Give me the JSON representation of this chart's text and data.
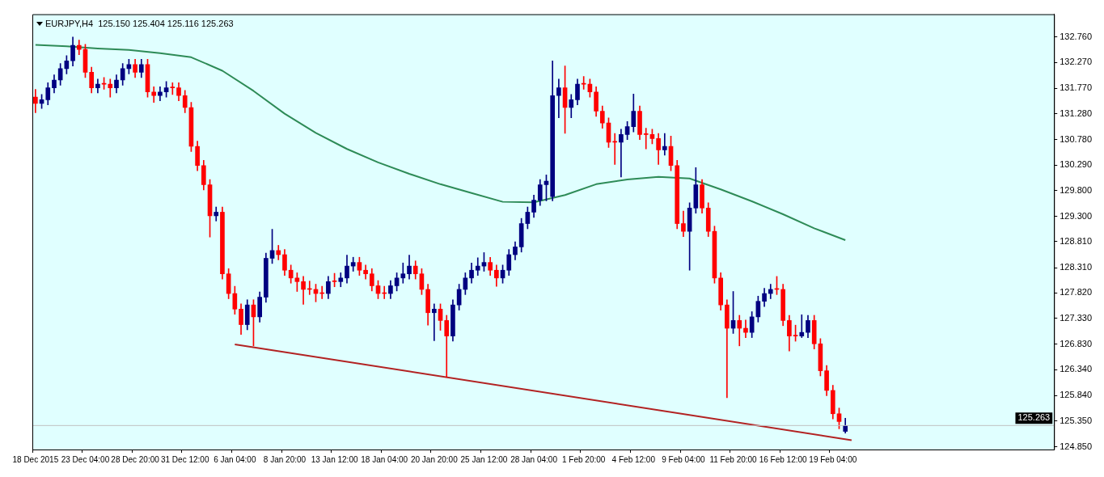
{
  "chart_data": {
    "type": "candlestick",
    "title": "EURJPY,H4  125.150 125.404 125.116 125.263",
    "categories": [
      "18 Dec 2015",
      null,
      null,
      null,
      null,
      null,
      null,
      null,
      "23 Dec 04:00",
      null,
      null,
      null,
      null,
      null,
      null,
      null,
      "28 Dec 20:00",
      null,
      null,
      null,
      null,
      null,
      null,
      null,
      "31 Dec 12:00",
      null,
      null,
      null,
      null,
      null,
      null,
      null,
      "6 Jan 04:00",
      null,
      null,
      null,
      null,
      null,
      null,
      null,
      "8 Jan 20:00",
      null,
      null,
      null,
      null,
      null,
      null,
      null,
      "13 Jan 12:00",
      null,
      null,
      null,
      null,
      null,
      null,
      null,
      "18 Jan 04:00",
      null,
      null,
      null,
      null,
      null,
      null,
      null,
      "20 Jan 20:00",
      null,
      null,
      null,
      null,
      null,
      null,
      null,
      "25 Jan 12:00",
      null,
      null,
      null,
      null,
      null,
      null,
      null,
      "28 Jan 04:00",
      null,
      null,
      null,
      null,
      null,
      null,
      null,
      "1 Feb 20:00",
      null,
      null,
      null,
      null,
      null,
      null,
      null,
      "4 Feb 12:00",
      null,
      null,
      null,
      null,
      null,
      null,
      null,
      "9 Feb 04:00",
      null,
      null,
      null,
      null,
      null,
      null,
      null,
      "11 Feb 20:00",
      null,
      null,
      null,
      null,
      null,
      null,
      null,
      "16 Feb 12:00",
      null,
      null,
      null,
      null,
      null,
      null,
      null,
      "19 Feb 04:00",
      null,
      null,
      null,
      null,
      null,
      null,
      null,
      null,
      null,
      null,
      null,
      null,
      null,
      null,
      null,
      null,
      null,
      null,
      null,
      null,
      null,
      null,
      null,
      null,
      null,
      null,
      null,
      null,
      null,
      null,
      null,
      null,
      null,
      null,
      null
    ],
    "ohlc": [
      [
        131.6,
        131.75,
        131.3,
        131.48
      ],
      [
        131.48,
        131.65,
        131.38,
        131.55
      ],
      [
        131.55,
        131.88,
        131.45,
        131.78
      ],
      [
        131.78,
        132.03,
        131.68,
        131.93
      ],
      [
        131.93,
        132.25,
        131.83,
        132.15
      ],
      [
        132.15,
        132.4,
        132.05,
        132.3
      ],
      [
        132.3,
        132.76,
        132.2,
        132.6
      ],
      [
        132.6,
        132.7,
        132.42,
        132.52
      ],
      [
        132.52,
        132.62,
        131.98,
        132.08
      ],
      [
        132.08,
        132.18,
        131.68,
        131.78
      ],
      [
        131.78,
        131.95,
        131.68,
        131.85
      ],
      [
        131.85,
        131.98,
        131.75,
        131.85
      ],
      [
        131.85,
        131.95,
        131.6,
        131.78
      ],
      [
        131.78,
        132.03,
        131.68,
        131.93
      ],
      [
        131.93,
        132.25,
        131.83,
        132.15
      ],
      [
        132.15,
        132.33,
        132.05,
        132.23
      ],
      [
        132.23,
        132.33,
        131.98,
        132.08
      ],
      [
        132.08,
        132.33,
        131.98,
        132.23
      ],
      [
        132.23,
        132.33,
        131.6,
        131.7
      ],
      [
        131.7,
        131.8,
        131.5,
        131.63
      ],
      [
        131.63,
        131.8,
        131.53,
        131.7
      ],
      [
        131.7,
        131.9,
        131.6,
        131.78
      ],
      [
        131.78,
        131.88,
        131.65,
        131.78
      ],
      [
        131.78,
        131.88,
        131.53,
        131.63
      ],
      [
        131.63,
        131.73,
        131.3,
        131.4
      ],
      [
        131.4,
        131.5,
        130.55,
        130.65
      ],
      [
        130.65,
        130.75,
        130.18,
        130.28
      ],
      [
        130.28,
        130.38,
        129.81,
        129.91
      ],
      [
        129.91,
        130.01,
        128.9,
        129.31
      ],
      [
        129.31,
        129.48,
        129.21,
        129.38
      ],
      [
        129.38,
        129.48,
        128.09,
        128.19
      ],
      [
        128.19,
        128.29,
        127.71,
        127.81
      ],
      [
        127.81,
        127.95,
        127.41,
        127.51
      ],
      [
        127.51,
        127.61,
        127.02,
        127.21
      ],
      [
        127.21,
        127.69,
        127.11,
        127.59
      ],
      [
        127.59,
        127.69,
        126.8,
        127.36
      ],
      [
        127.36,
        127.84,
        127.26,
        127.74
      ],
      [
        127.74,
        128.59,
        127.64,
        128.49
      ],
      [
        128.49,
        129.05,
        128.39,
        128.64
      ],
      [
        128.64,
        128.74,
        128.46,
        128.56
      ],
      [
        128.56,
        128.66,
        128.16,
        128.26
      ],
      [
        128.26,
        128.36,
        128.01,
        128.11
      ],
      [
        128.11,
        128.21,
        127.85,
        128.04
      ],
      [
        128.04,
        128.14,
        127.6,
        127.89
      ],
      [
        127.89,
        128.05,
        127.79,
        127.89
      ],
      [
        127.89,
        127.99,
        127.65,
        127.81
      ],
      [
        127.81,
        127.95,
        127.71,
        127.81
      ],
      [
        127.81,
        128.14,
        127.71,
        128.04
      ],
      [
        128.04,
        128.2,
        127.94,
        128.04
      ],
      [
        128.04,
        128.21,
        127.94,
        128.11
      ],
      [
        128.11,
        128.55,
        128.01,
        128.34
      ],
      [
        128.34,
        128.51,
        128.24,
        128.41
      ],
      [
        128.41,
        128.51,
        128.16,
        128.26
      ],
      [
        128.26,
        128.36,
        128.09,
        128.19
      ],
      [
        128.19,
        128.29,
        127.86,
        127.96
      ],
      [
        127.96,
        128.06,
        127.71,
        127.81
      ],
      [
        127.81,
        127.95,
        127.71,
        127.81
      ],
      [
        127.81,
        128.06,
        127.71,
        127.96
      ],
      [
        127.96,
        128.21,
        127.86,
        128.11
      ],
      [
        128.11,
        128.4,
        128.01,
        128.19
      ],
      [
        128.19,
        128.55,
        128.09,
        128.34
      ],
      [
        128.34,
        128.44,
        128.09,
        128.19
      ],
      [
        128.19,
        128.29,
        127.79,
        127.89
      ],
      [
        127.89,
        127.99,
        127.2,
        127.44
      ],
      [
        127.44,
        127.61,
        126.9,
        127.51
      ],
      [
        127.51,
        127.61,
        127.1,
        127.29
      ],
      [
        127.29,
        127.39,
        126.2,
        126.99
      ],
      [
        126.99,
        127.69,
        126.89,
        127.59
      ],
      [
        127.59,
        127.99,
        127.49,
        127.89
      ],
      [
        127.89,
        128.21,
        127.79,
        128.11
      ],
      [
        128.11,
        128.4,
        128.01,
        128.26
      ],
      [
        128.26,
        128.5,
        128.16,
        128.34
      ],
      [
        128.34,
        128.6,
        128.24,
        128.41
      ],
      [
        128.41,
        128.51,
        128.16,
        128.26
      ],
      [
        128.26,
        128.36,
        127.95,
        128.11
      ],
      [
        128.11,
        128.36,
        128.01,
        128.26
      ],
      [
        128.26,
        128.66,
        128.16,
        128.56
      ],
      [
        128.56,
        128.81,
        128.46,
        128.71
      ],
      [
        128.71,
        129.26,
        128.61,
        129.16
      ],
      [
        129.16,
        129.48,
        129.06,
        129.38
      ],
      [
        129.38,
        129.71,
        129.28,
        129.61
      ],
      [
        129.61,
        130.01,
        129.51,
        129.91
      ],
      [
        129.91,
        130.1,
        129.6,
        129.98
      ],
      [
        129.68,
        132.3,
        129.6,
        131.63
      ],
      [
        131.63,
        131.95,
        131.2,
        131.78
      ],
      [
        131.78,
        132.2,
        130.9,
        131.4
      ],
      [
        131.4,
        131.65,
        131.2,
        131.55
      ],
      [
        131.55,
        131.95,
        131.45,
        131.85
      ],
      [
        131.85,
        132.0,
        131.75,
        131.85
      ],
      [
        131.85,
        131.95,
        131.6,
        131.7
      ],
      [
        131.7,
        131.8,
        131.23,
        131.33
      ],
      [
        131.33,
        131.43,
        131.0,
        131.1
      ],
      [
        131.1,
        131.2,
        130.63,
        130.73
      ],
      [
        130.73,
        130.9,
        130.3,
        130.73
      ],
      [
        130.73,
        130.98,
        130.06,
        130.88
      ],
      [
        130.88,
        131.13,
        130.78,
        131.03
      ],
      [
        131.03,
        131.66,
        130.93,
        131.33
      ],
      [
        131.33,
        131.43,
        130.78,
        130.88
      ],
      [
        130.88,
        131.0,
        130.6,
        130.88
      ],
      [
        130.88,
        130.98,
        130.7,
        130.8
      ],
      [
        130.8,
        130.9,
        130.3,
        130.58
      ],
      [
        130.58,
        130.9,
        130.48,
        130.65
      ],
      [
        130.65,
        130.85,
        130.18,
        130.28
      ],
      [
        130.28,
        130.38,
        129.06,
        129.16
      ],
      [
        129.16,
        129.4,
        128.91,
        129.01
      ],
      [
        129.01,
        129.56,
        128.26,
        129.46
      ],
      [
        129.46,
        130.24,
        129.36,
        129.91
      ],
      [
        129.91,
        130.01,
        129.36,
        129.46
      ],
      [
        129.46,
        129.56,
        128.91,
        129.01
      ],
      [
        129.01,
        129.11,
        128.01,
        128.11
      ],
      [
        128.11,
        128.21,
        127.49,
        127.59
      ],
      [
        127.59,
        127.69,
        125.8,
        127.14
      ],
      [
        127.14,
        127.85,
        127.04,
        127.29
      ],
      [
        127.29,
        127.39,
        126.8,
        127.14
      ],
      [
        127.14,
        127.3,
        126.96,
        127.06
      ],
      [
        127.06,
        127.46,
        126.96,
        127.36
      ],
      [
        127.36,
        127.76,
        127.26,
        127.66
      ],
      [
        127.66,
        127.91,
        127.56,
        127.81
      ],
      [
        127.81,
        127.99,
        127.71,
        127.89
      ],
      [
        127.89,
        128.14,
        127.79,
        127.89
      ],
      [
        127.89,
        127.99,
        127.19,
        127.29
      ],
      [
        127.29,
        127.39,
        126.7,
        126.99
      ],
      [
        126.99,
        127.2,
        126.89,
        126.99
      ],
      [
        126.99,
        127.4,
        126.96,
        127.06
      ],
      [
        127.06,
        127.39,
        126.96,
        127.29
      ],
      [
        127.29,
        127.39,
        126.74,
        126.84
      ],
      [
        126.84,
        126.94,
        126.22,
        126.32
      ],
      [
        126.32,
        126.42,
        125.84,
        125.94
      ],
      [
        125.94,
        126.04,
        125.39,
        125.49
      ],
      [
        125.49,
        125.6,
        125.2,
        125.34
      ],
      [
        125.15,
        125.404,
        125.116,
        125.263
      ],
      null,
      null,
      null,
      null,
      null,
      null,
      null,
      null,
      null,
      null,
      null,
      null,
      null,
      null,
      null,
      null,
      null,
      null,
      null,
      null,
      null,
      null,
      null,
      null,
      null,
      null,
      null,
      null,
      null,
      null,
      null,
      null,
      null
    ],
    "colors": [
      "#ff0000",
      "#000080",
      "#000080",
      "#000080",
      "#000080",
      "#000080",
      "#000080",
      "#ff0000",
      "#ff0000",
      "#ff0000",
      "#000080",
      "#ff0000",
      "#ff0000",
      "#000080",
      "#000080",
      "#000080",
      "#ff0000",
      "#000080",
      "#ff0000",
      "#ff0000",
      "#000080",
      "#000080",
      "#ff0000",
      "#ff0000",
      "#ff0000",
      "#ff0000",
      "#ff0000",
      "#ff0000",
      "#ff0000",
      "#000080",
      "#ff0000",
      "#ff0000",
      "#ff0000",
      "#ff0000",
      "#000080",
      "#ff0000",
      "#000080",
      "#000080",
      "#000080",
      "#ff0000",
      "#ff0000",
      "#ff0000",
      "#ff0000",
      "#ff0000",
      "#ff0000",
      "#ff0000",
      "#ff0000",
      "#000080",
      "#ff0000",
      "#000080",
      "#000080",
      "#000080",
      "#ff0000",
      "#ff0000",
      "#ff0000",
      "#ff0000",
      "#ff0000",
      "#000080",
      "#000080",
      "#000080",
      "#000080",
      "#ff0000",
      "#ff0000",
      "#ff0000",
      "#000080",
      "#ff0000",
      "#ff0000",
      "#000080",
      "#000080",
      "#000080",
      "#000080",
      "#000080",
      "#000080",
      "#ff0000",
      "#ff0000",
      "#000080",
      "#000080",
      "#000080",
      "#000080",
      "#000080",
      "#000080",
      "#000080",
      "#000080",
      "#000080",
      "#000080",
      "#ff0000",
      "#000080",
      "#000080",
      "#ff0000",
      "#ff0000",
      "#ff0000",
      "#ff0000",
      "#ff0000",
      "#ff0000",
      "#000080",
      "#000080",
      "#000080",
      "#ff0000",
      "#ff0000",
      "#ff0000",
      "#ff0000",
      "#000080",
      "#ff0000",
      "#ff0000",
      "#ff0000",
      "#000080",
      "#000080",
      "#ff0000",
      "#ff0000",
      "#ff0000",
      "#ff0000",
      "#ff0000",
      "#000080",
      "#ff0000",
      "#ff0000",
      "#000080",
      "#000080",
      "#000080",
      "#000080",
      "#ff0000",
      "#ff0000",
      "#ff0000",
      "#ff0000",
      "#000080",
      "#000080",
      "#ff0000",
      "#ff0000",
      "#ff0000",
      "#ff0000",
      "#ff0000",
      "#000080",
      null,
      null,
      null,
      null,
      null,
      null,
      null,
      null,
      null,
      null,
      null,
      null,
      null,
      null,
      null,
      null,
      null,
      null,
      null,
      null,
      null,
      null,
      null,
      null,
      null,
      null,
      null,
      null,
      null,
      null,
      null,
      null,
      null
    ],
    "series": [
      {
        "type": "line",
        "color": "#2e8b57",
        "values": [
          132.61,
          null,
          null,
          null,
          null,
          132.58,
          null,
          null,
          null,
          null,
          132.54,
          null,
          null,
          null,
          null,
          132.51,
          null,
          null,
          null,
          null,
          132.45,
          null,
          null,
          null,
          null,
          132.37,
          null,
          null,
          null,
          null,
          132.11,
          null,
          null,
          null,
          null,
          131.72,
          null,
          null,
          null,
          null,
          131.28,
          null,
          null,
          null,
          null,
          130.91,
          null,
          null,
          null,
          null,
          130.6,
          null,
          null,
          null,
          null,
          130.34,
          null,
          null,
          null,
          null,
          130.12,
          null,
          null,
          null,
          null,
          129.92,
          null,
          null,
          null,
          null,
          129.75,
          null,
          null,
          null,
          null,
          129.58,
          null,
          null,
          null,
          null,
          129.57,
          null,
          null,
          null,
          null,
          129.71,
          null,
          null,
          null,
          null,
          129.92,
          null,
          null,
          null,
          null,
          130.01,
          null,
          null,
          null,
          null,
          130.06,
          null,
          null,
          null,
          null,
          130.03,
          null,
          null,
          null,
          null,
          129.82,
          null,
          null,
          null,
          null,
          129.59,
          null,
          null,
          null,
          null,
          129.34,
          null,
          null,
          null,
          null,
          129.07,
          null,
          null,
          null,
          null,
          128.84,
          null,
          null,
          null,
          null,
          null,
          null,
          null,
          null,
          null,
          null,
          null,
          null,
          null,
          null,
          null,
          null,
          null,
          null,
          null,
          null,
          null,
          null,
          null,
          null,
          null,
          null,
          null,
          null,
          null,
          null,
          null,
          null,
          null
        ]
      },
      {
        "type": "line",
        "color": "#b22222",
        "values": [
          null,
          null,
          null,
          null,
          null,
          null,
          null,
          null,
          null,
          null,
          null,
          null,
          null,
          null,
          null,
          null,
          null,
          null,
          null,
          null,
          null,
          null,
          null,
          null,
          null,
          null,
          null,
          null,
          null,
          null,
          null,
          null,
          126.83,
          null,
          null,
          null,
          null,
          null,
          null,
          null,
          null,
          null,
          null,
          null,
          null,
          null,
          null,
          null,
          null,
          null,
          null,
          null,
          null,
          null,
          null,
          null,
          null,
          null,
          null,
          null,
          null,
          null,
          null,
          null,
          null,
          null,
          null,
          null,
          null,
          null,
          null,
          null,
          null,
          null,
          null,
          null,
          null,
          null,
          null,
          null,
          null,
          null,
          null,
          null,
          null,
          null,
          null,
          null,
          null,
          null,
          null,
          null,
          null,
          null,
          null,
          null,
          null,
          null,
          null,
          null,
          null,
          null,
          null,
          null,
          null,
          null,
          null,
          null,
          null,
          null,
          null,
          null,
          null,
          null,
          null,
          null,
          null,
          null,
          null,
          null,
          null,
          null,
          null,
          null,
          null,
          null,
          null,
          null,
          null,
          null,
          null,
          124.98,
          null,
          null,
          null,
          null,
          null,
          null,
          null,
          null,
          null,
          null,
          null,
          null,
          null,
          null,
          null,
          null,
          null,
          null,
          null,
          null,
          null,
          null,
          null,
          null,
          null,
          null,
          null,
          null,
          null,
          null,
          null,
          null
        ]
      }
    ],
    "ylim": [
      124.8,
      133.2
    ],
    "yticks": [
      {
        "value": 124.85,
        "label": "124.850"
      },
      {
        "value": 125.35,
        "label": "125.350"
      },
      {
        "value": 125.84,
        "label": "125.840"
      },
      {
        "value": 126.34,
        "label": "126.340"
      },
      {
        "value": 126.83,
        "label": "126.830"
      },
      {
        "value": 127.33,
        "label": "127.330"
      },
      {
        "value": 127.82,
        "label": "127.820"
      },
      {
        "value": 128.31,
        "label": "128.310"
      },
      {
        "value": 128.81,
        "label": "128.810"
      },
      {
        "value": 129.3,
        "label": "129.300"
      },
      {
        "value": 129.8,
        "label": "129.800"
      },
      {
        "value": 130.29,
        "label": "130.290"
      },
      {
        "value": 130.78,
        "label": "130.780"
      },
      {
        "value": 131.28,
        "label": "131.280"
      },
      {
        "value": 131.77,
        "label": "131.770"
      },
      {
        "value": 132.27,
        "label": "132.270"
      },
      {
        "value": 132.76,
        "label": "132.760"
      }
    ],
    "ref_lines": [
      {
        "axis": "y",
        "value": 125.263,
        "label": "125.263",
        "color": "#c0c0c0"
      }
    ]
  }
}
